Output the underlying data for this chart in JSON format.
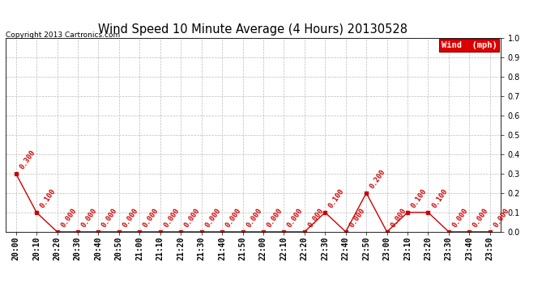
{
  "title": "Wind Speed 10 Minute Average (4 Hours) 20130528",
  "copyright": "Copyright 2013 Cartronics.com",
  "legend_label": "Wind  (mph)",
  "line_color": "#cc0000",
  "line_color_dark": "#800000",
  "background_color": "#ffffff",
  "grid_color": "#bbbbbb",
  "labels": [
    "20:00",
    "20:10",
    "20:20",
    "20:30",
    "20:40",
    "20:50",
    "21:00",
    "21:10",
    "21:20",
    "21:30",
    "21:40",
    "21:50",
    "22:00",
    "22:10",
    "22:20",
    "22:30",
    "22:40",
    "22:50",
    "23:00",
    "23:10",
    "23:20",
    "23:30",
    "23:40",
    "23:50"
  ],
  "values": [
    0.3,
    0.1,
    0.0,
    0.0,
    0.0,
    0.0,
    0.0,
    0.0,
    0.0,
    0.0,
    0.0,
    0.0,
    0.0,
    0.0,
    0.0,
    0.1,
    0.0,
    0.2,
    0.0,
    0.1,
    0.1,
    0.0,
    0.0,
    0.0
  ],
  "ylim": [
    0.0,
    1.0
  ],
  "yticks": [
    0.0,
    0.1,
    0.2,
    0.3,
    0.4,
    0.5,
    0.6,
    0.7,
    0.8,
    0.9,
    1.0
  ],
  "annotation_fontsize": 6.5,
  "title_fontsize": 10.5,
  "legend_fontsize": 7.5,
  "tick_fontsize": 7,
  "copyright_fontsize": 6.5
}
